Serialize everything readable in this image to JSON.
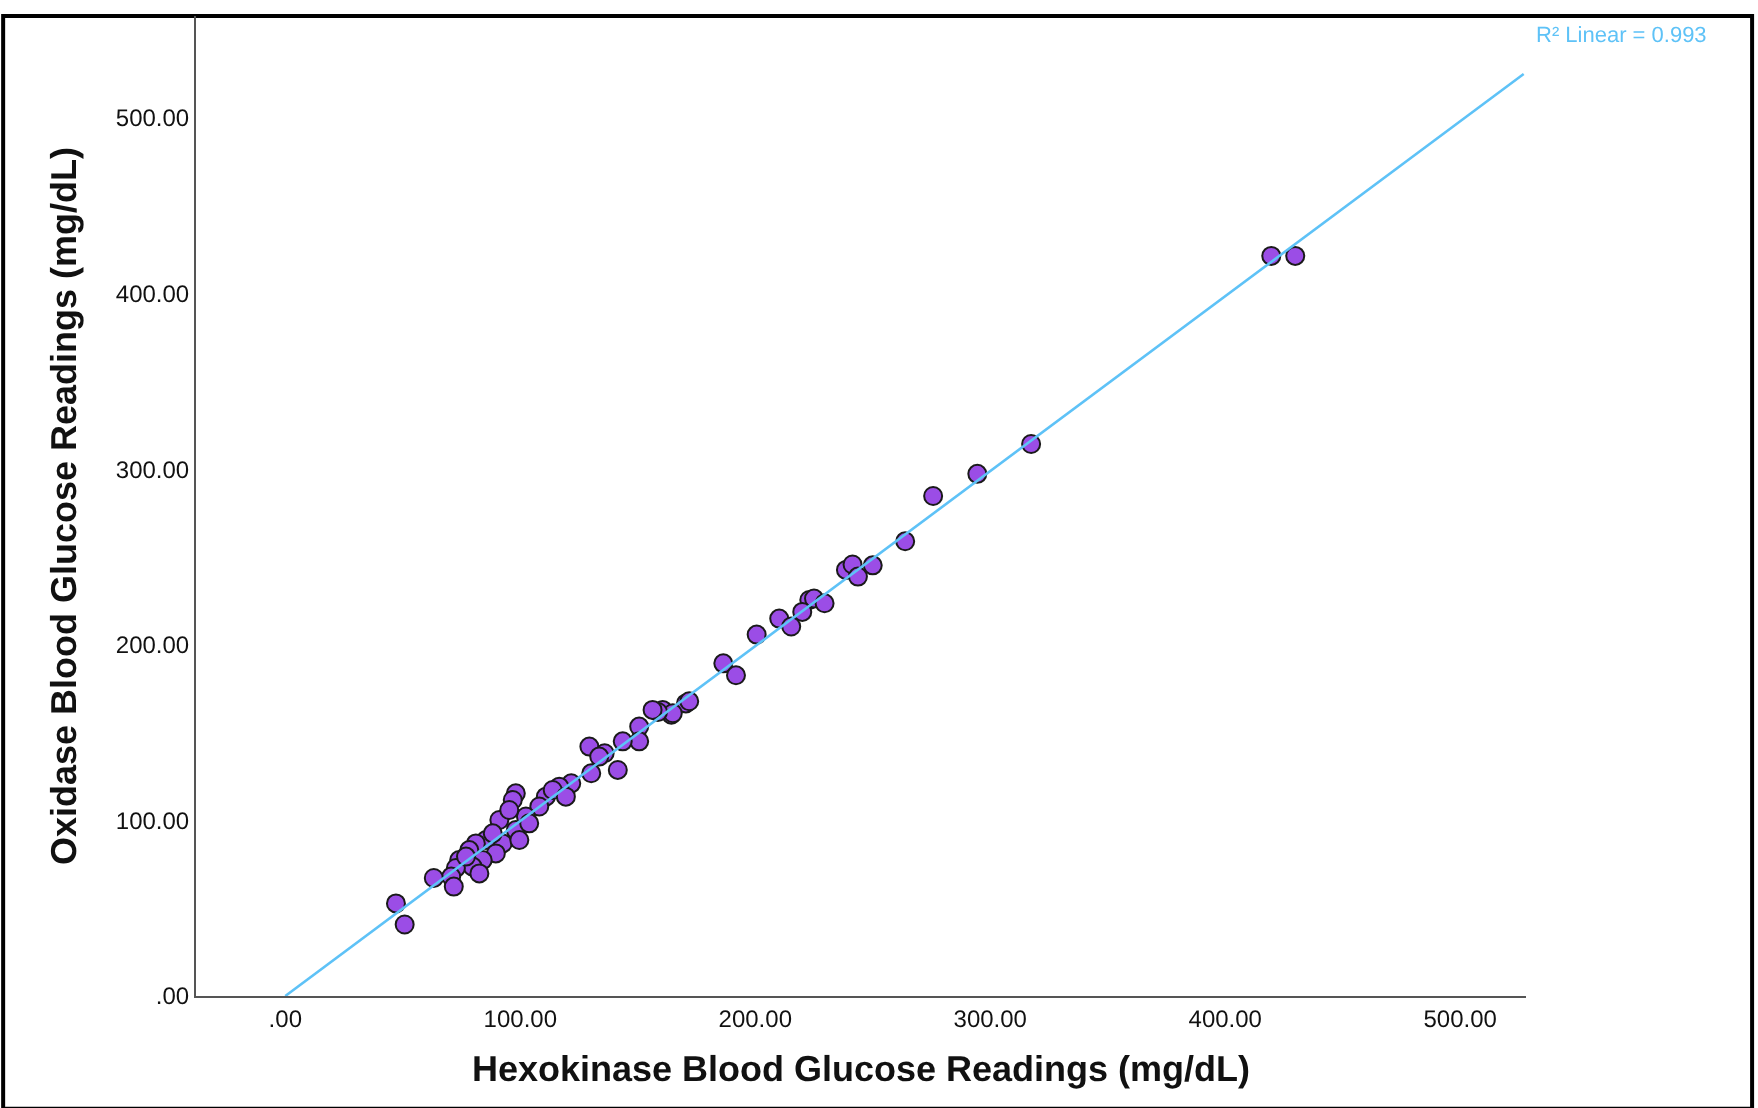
{
  "chart_data": {
    "type": "scatter",
    "xlabel": "Hexokinase Blood Glucose Readings (mg/dL)",
    "ylabel": "Oxidase Blood Glucose Readings (mg/dL)",
    "annotations": [
      "R² Linear = 0.993"
    ],
    "xlim": [
      -38,
      528
    ],
    "ylim": [
      0,
      558
    ],
    "xticks": [
      {
        "value": 0,
        "label": ".00"
      },
      {
        "value": 100,
        "label": "100.00"
      },
      {
        "value": 200,
        "label": "200.00"
      },
      {
        "value": 300,
        "label": "300.00"
      },
      {
        "value": 400,
        "label": "400.00"
      },
      {
        "value": 500,
        "label": "500.00"
      }
    ],
    "yticks": [
      {
        "value": 0,
        "label": ".00"
      },
      {
        "value": 100,
        "label": "100.00"
      },
      {
        "value": 200,
        "label": "200.00"
      },
      {
        "value": 300,
        "label": "300.00"
      },
      {
        "value": 400,
        "label": "400.00"
      },
      {
        "value": 500,
        "label": "500.00"
      }
    ],
    "marker": "circle",
    "series": [
      {
        "type": "scatter",
        "color": "#9b4de6",
        "x": [
          419.6,
          429.8,
          294.5,
          317.4,
          275.7,
          263.8,
          238.6,
          241.4,
          243.7,
          250,
          223,
          225,
          220,
          229.5,
          210.2,
          215.3,
          200.6,
          186.4,
          191.8,
          170.5,
          160.6,
          164.3,
          171.9,
          164.9,
          158.6,
          150.6,
          150.6,
          143.6,
          129.4,
          141.5,
          135.9,
          133.6,
          130.2,
          121.7,
          116.6,
          110.9,
          108.1,
          98.1,
          96.8,
          102.4,
          98.1,
          91.1,
          92.5,
          85.4,
          81.1,
          78.3,
          74,
          89.6,
          84,
          79.7,
          72.6,
          82.6,
          70.6,
          63.2,
          71.7,
          47.1,
          50.8,
          95.3,
          99.6,
          103.8,
          113.8,
          119.4,
          156.3,
          88.3,
          76.9
        ],
        "values": [
          421.4,
          421.4,
          297.3,
          314.3,
          284.7,
          258.9,
          242.6,
          245.7,
          238.8,
          245.2,
          225.5,
          226.3,
          218.7,
          223.6,
          214.9,
          210.4,
          205.8,
          189.4,
          182.6,
          166.6,
          162.9,
          160.2,
          167.8,
          161,
          161.7,
          153.4,
          145,
          145,
          142,
          128.7,
          138.2,
          136.3,
          126.8,
          121.1,
          119.2,
          113.5,
          107.9,
          115.4,
          111.6,
          102.2,
          94.5,
          100.2,
          86.9,
          88.8,
          86.9,
          83.1,
          77.4,
          81.2,
          77.4,
          73.7,
          72.9,
          69.8,
          68,
          67.2,
          62.3,
          52.7,
          40.7,
          105.9,
          88.8,
          98.3,
          117.3,
          113.5,
          162.9,
          92.6,
          79.4
        ]
      },
      {
        "type": "line",
        "color": "#5ec2f7",
        "marker": "none",
        "line_style": "solid",
        "x": [
          0,
          527
        ],
        "values": [
          0,
          525
        ]
      }
    ]
  }
}
